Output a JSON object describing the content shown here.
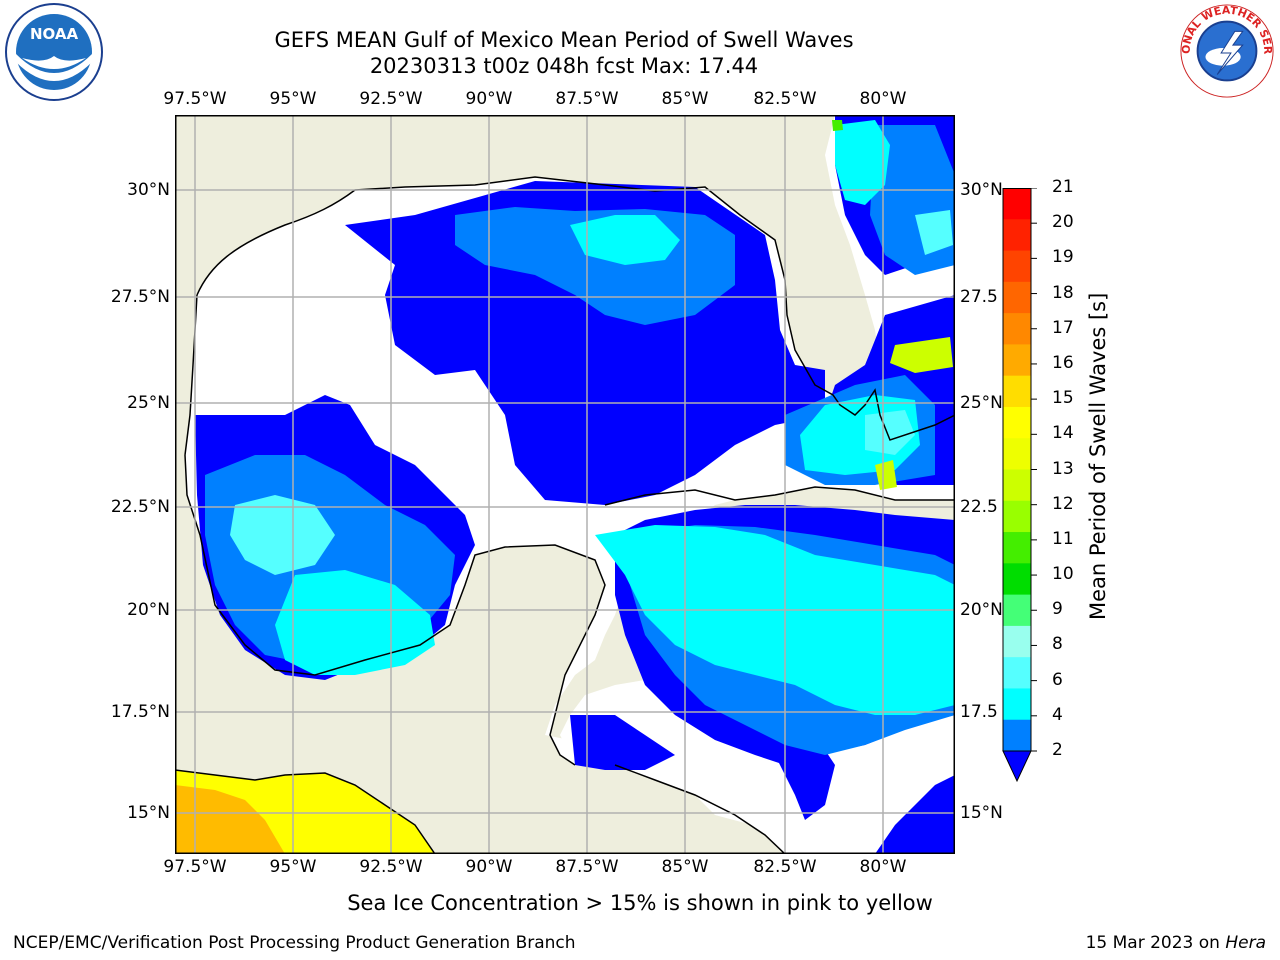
{
  "title": "GEFS MEAN Gulf of Mexico Mean Period of Swell Waves",
  "subtitle": "20230313 t00z 048h fcst   Max: 17.44",
  "lon_labels": [
    "97.5°W",
    "95°W",
    "92.5°W",
    "90°W",
    "87.5°W",
    "85°W",
    "82.5°W",
    "80°W"
  ],
  "lat_labels_left": [
    "30°N",
    "27.5°N",
    "25°N",
    "22.5°N",
    "20°N",
    "17.5°N",
    "15°N"
  ],
  "lat_labels_right": [
    "30°N",
    "27.5",
    "25°N",
    "22.5",
    "20°N",
    "17.5",
    "15°N"
  ],
  "colorbar": {
    "label": "Mean Period of Swell Waves [s]",
    "ticks": [
      "21",
      "20",
      "19",
      "18",
      "17",
      "16",
      "15",
      "14",
      "13",
      "12",
      "11",
      "10",
      "9",
      "8",
      "6",
      "4",
      "2"
    ],
    "colors": [
      "#ff0000",
      "#ff2200",
      "#ff4400",
      "#ff6600",
      "#ff8800",
      "#ffaa00",
      "#ffdd00",
      "#ffff00",
      "#eeff00",
      "#ccff00",
      "#99ff00",
      "#44ee00",
      "#00dd00",
      "#44ff77",
      "#99ffee",
      "#55ffff",
      "#00ffff",
      "#0080ff"
    ],
    "extend_color": "#0000ff"
  },
  "colors": {
    "land": "#eeeedd",
    "ocean_none": "#ffffff",
    "grid": "#b0b0b0",
    "blue_2": "#0000ff",
    "blue_2_4": "#0080ff",
    "cyan_4_6": "#00ffff",
    "ltcyan_6_8": "#55ffff",
    "yellow": "#ffff00",
    "orange": "#ffbb00"
  },
  "icons": {
    "left_logo": "noaa-logo",
    "right_logo": "nws-logo"
  },
  "left_logo_text": "NOAA",
  "right_logo_text": "NATIONAL WEATHER SERVICE",
  "sea_ice_note": "Sea Ice Concentration > 15% is shown in pink to yellow",
  "footer_left": "NCEP/EMC/Verification Post Processing Product Generation Branch",
  "footer_right_date": "15 Mar 2023 on ",
  "footer_right_host": "Hera"
}
